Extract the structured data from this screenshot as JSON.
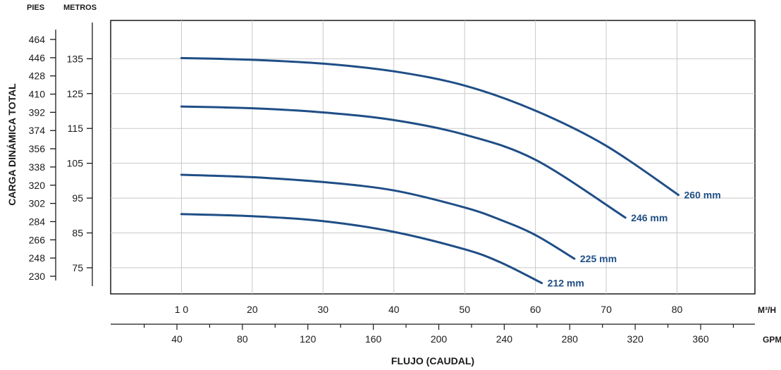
{
  "chart_data": {
    "type": "line",
    "ylabel": "CARGA DINÁMICA TOTAL",
    "xlabel": "FLUJO (CAUDAL)",
    "y_left_header": "PIES",
    "y_right_header": "METROS",
    "x_top_unit": "M³/H",
    "x_bottom_unit": "GPM",
    "x_top_ticks": [
      "1 0",
      "20",
      "30",
      "40",
      "50",
      "60",
      "70",
      "80"
    ],
    "x_top_values": [
      10,
      20,
      30,
      40,
      50,
      60,
      70,
      80
    ],
    "x_bottom_ticks": [
      "40",
      "80",
      "120",
      "160",
      "200",
      "240",
      "280",
      "320",
      "360"
    ],
    "y_metros_ticks": [
      "135",
      "125",
      "115",
      "105",
      "95",
      "85",
      "75"
    ],
    "y_metros_values": [
      135,
      125,
      115,
      105,
      95,
      85,
      75
    ],
    "y_pies_ticks": [
      "464",
      "446",
      "428",
      "410",
      "392",
      "374",
      "356",
      "338",
      "320",
      "302",
      "284",
      "266",
      "248",
      "230"
    ],
    "xlim": [
      0,
      91
    ],
    "ylim": [
      67.5,
      146
    ],
    "grid": true,
    "line_color": "#1f4e86",
    "series": [
      {
        "name": "260 mm",
        "x": [
          10,
          20,
          30,
          40,
          50,
          60,
          70,
          80.2
        ],
        "y": [
          135.2,
          134.7,
          133.6,
          131.4,
          127.3,
          120.1,
          110.0,
          95.9
        ]
      },
      {
        "name": "246 mm",
        "x": [
          10,
          20,
          30,
          40,
          50,
          60,
          72.7
        ],
        "y": [
          121.3,
          120.8,
          119.6,
          117.4,
          113.2,
          106.0,
          89.4
        ]
      },
      {
        "name": "225 mm",
        "x": [
          10,
          20,
          30,
          40,
          50,
          55,
          60,
          65.5
        ],
        "y": [
          101.7,
          101.0,
          99.6,
          97.2,
          92.3,
          88.8,
          84.4,
          77.6
        ]
      },
      {
        "name": "212 mm",
        "x": [
          10,
          20,
          30,
          40,
          50,
          55,
          60.9
        ],
        "y": [
          90.4,
          89.8,
          88.4,
          85.3,
          80.3,
          76.6,
          70.6
        ]
      }
    ]
  }
}
